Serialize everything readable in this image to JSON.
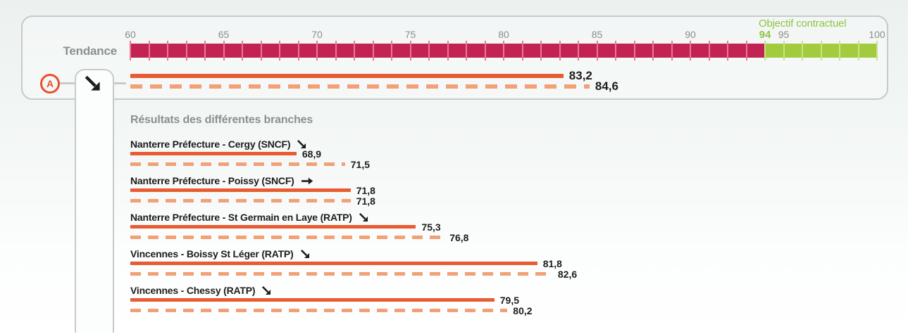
{
  "chart_data": {
    "type": "bar",
    "orientation": "horizontal",
    "title": "Tendance",
    "axis": {
      "min": 60,
      "max": 100,
      "minor_tick_step": 1,
      "major_ticks": [
        60,
        65,
        70,
        75,
        80,
        85,
        90,
        95,
        100
      ],
      "objective": {
        "value": 94,
        "label": "94",
        "title": "Objectif contractuel"
      }
    },
    "overall": {
      "marker": "A",
      "trend": "down",
      "solid": 83.2,
      "solid_label": "83,2",
      "dashed": 84.6,
      "dashed_label": "84,6"
    },
    "branches_title": "Résultats des différentes branches",
    "branches": [
      {
        "name": "Nanterre Préfecture - Cergy (SNCF)",
        "trend": "down",
        "solid": 68.9,
        "solid_label": "68,9",
        "dashed": 71.5,
        "dashed_label": "71,5"
      },
      {
        "name": "Nanterre Préfecture - Poissy (SNCF)",
        "trend": "stable",
        "solid": 71.8,
        "solid_label": "71,8",
        "dashed": 71.8,
        "dashed_label": "71,8"
      },
      {
        "name": "Nanterre Préfecture - St Germain en Laye (RATP)",
        "trend": "down",
        "solid": 75.3,
        "solid_label": "75,3",
        "dashed": 76.8,
        "dashed_label": "76,8"
      },
      {
        "name": "Vincennes - Boissy St Léger (RATP)",
        "trend": "down",
        "solid": 81.8,
        "solid_label": "81,8",
        "dashed": 82.6,
        "dashed_label": "82,6"
      },
      {
        "name": "Vincennes - Chessy (RATP)",
        "trend": "down",
        "solid": 79.5,
        "solid_label": "79,5",
        "dashed": 80.2,
        "dashed_label": "80,2"
      }
    ],
    "colors": {
      "scale_below_objective": "#c32352",
      "scale_below_tick": "#e4789c",
      "scale_above_objective": "#a2cb3e",
      "scale_above_tick": "#cbe28d",
      "objective_text": "#8dc63f",
      "solid_bar": "#e95c33",
      "dashed_bar": "#f2a076",
      "marker_orange": "#e8502a",
      "panel_border": "#c6cbca",
      "gray_text": "#8b918f",
      "dark_text": "#1d1d1b"
    }
  }
}
